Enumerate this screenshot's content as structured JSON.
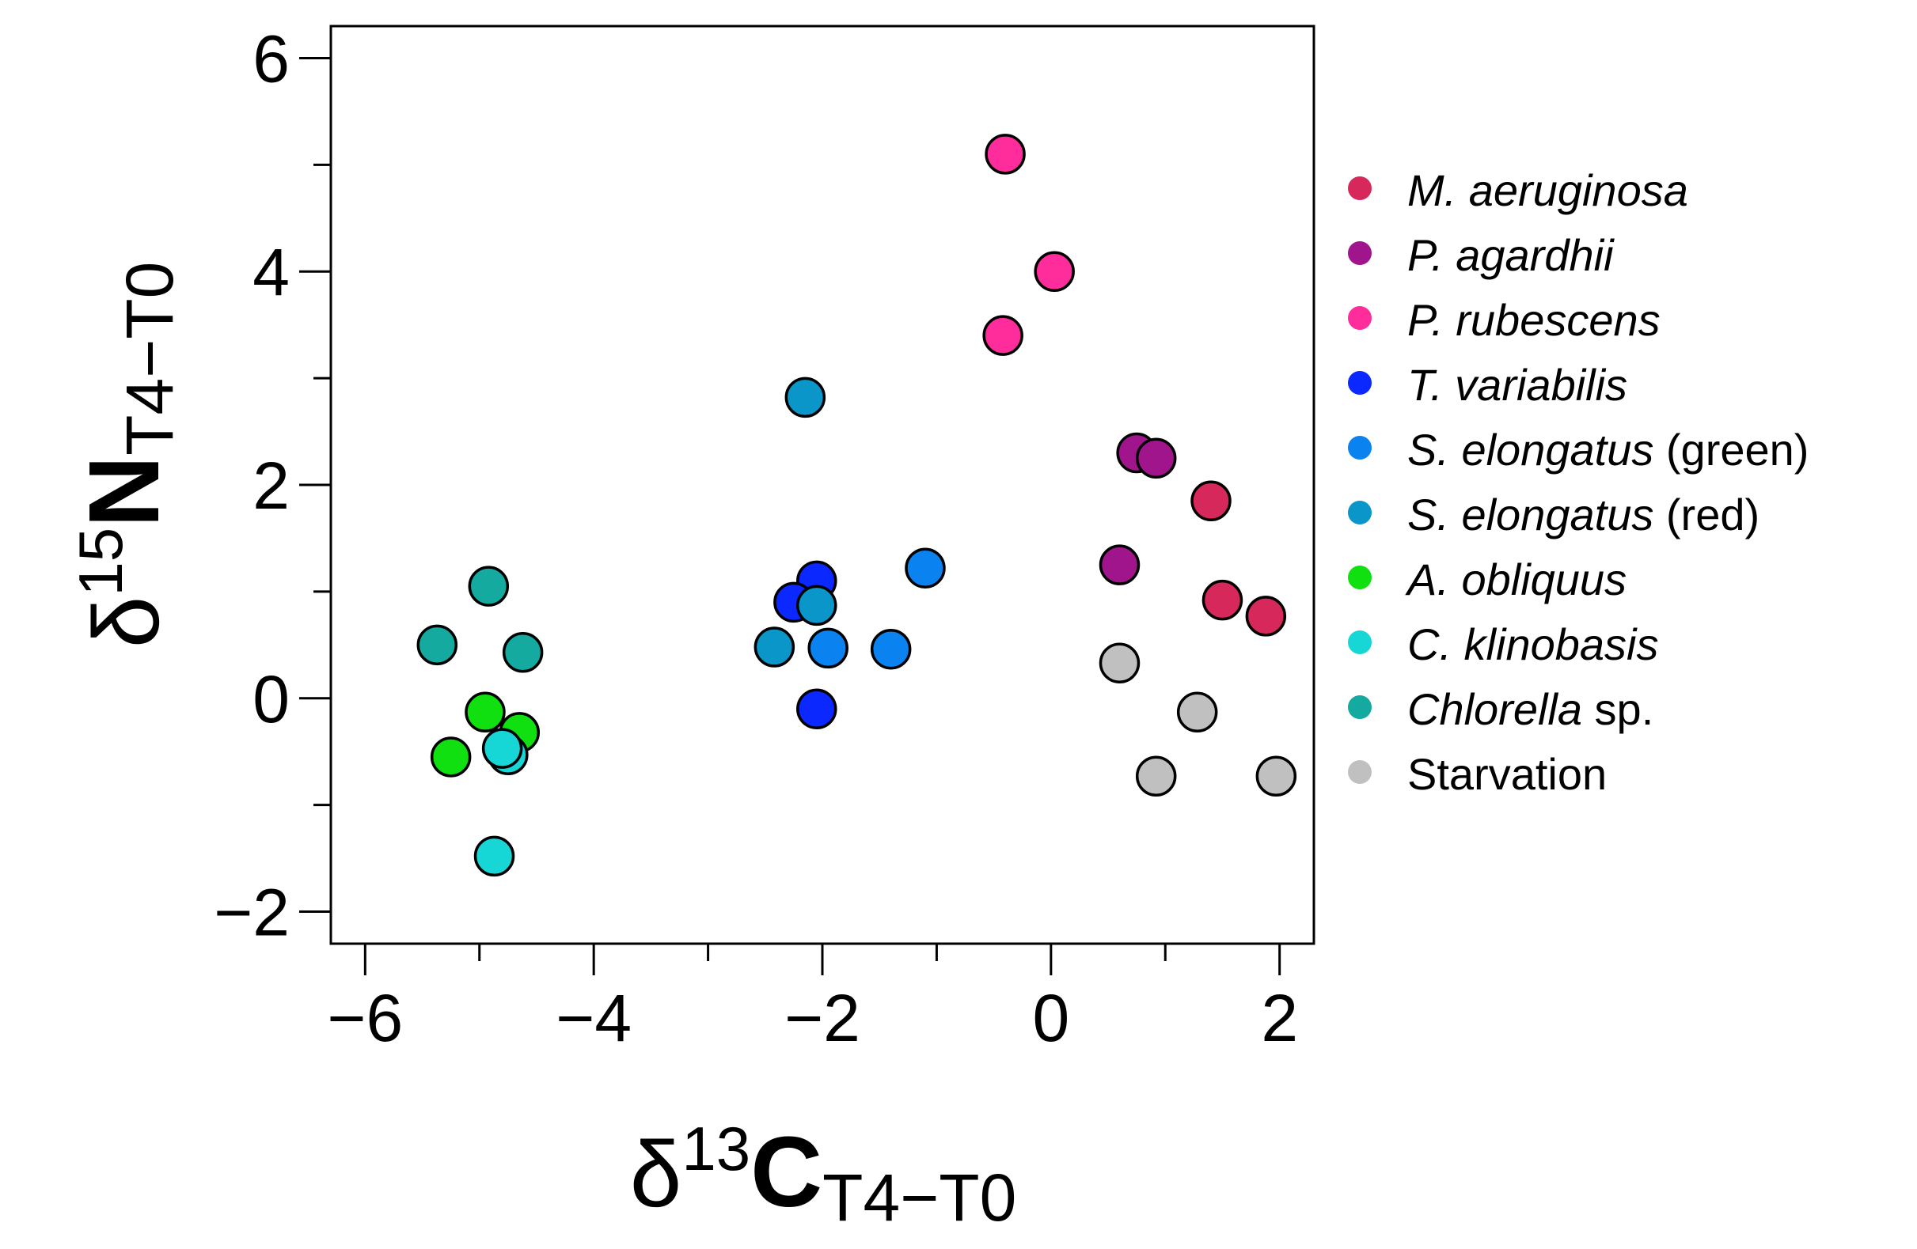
{
  "chart_data": {
    "type": "scatter",
    "title": "",
    "xlabel": {
      "symbol": "δ",
      "sup": "13",
      "main": "C",
      "sub": "T4−T0"
    },
    "ylabel": {
      "symbol": "δ",
      "sup": "15",
      "main": "N",
      "sub": "T4−T0"
    },
    "xlim": [
      -6.3,
      2.3
    ],
    "ylim": [
      -2.3,
      6.3
    ],
    "x_ticks": [
      -6,
      -4,
      -2,
      0,
      2
    ],
    "x_tick_labels": [
      "−6",
      "−4",
      "−2",
      "0",
      "2"
    ],
    "x_minor_ticks": [
      -5,
      -3,
      -1,
      1
    ],
    "y_ticks": [
      -2,
      0,
      2,
      4,
      6
    ],
    "y_tick_labels": [
      "−2",
      "0",
      "2",
      "4",
      "6"
    ],
    "y_minor_ticks": [
      -1,
      1,
      3,
      5
    ],
    "grid": false,
    "legend_position": "right",
    "series": [
      {
        "name": "M. aeruginosa",
        "italic": "M. aeruginosa",
        "suffix": "",
        "color": "#d6285a",
        "points": [
          [
            1.4,
            1.85
          ],
          [
            1.5,
            0.92
          ],
          [
            1.88,
            0.77
          ]
        ]
      },
      {
        "name": "P. agardhii",
        "italic": "P. agardhii",
        "suffix": "",
        "color": "#a0148c",
        "points": [
          [
            0.75,
            2.3
          ],
          [
            0.92,
            2.25
          ],
          [
            0.6,
            1.25
          ]
        ]
      },
      {
        "name": "P. rubescens",
        "italic": "P. rubescens",
        "suffix": "",
        "color": "#ff2d9b",
        "points": [
          [
            -0.4,
            5.1
          ],
          [
            0.03,
            4.0
          ],
          [
            -0.42,
            3.4
          ]
        ]
      },
      {
        "name": "T. variabilis",
        "italic": "T. variabilis",
        "suffix": "",
        "color": "#0a28ff",
        "points": [
          [
            -2.05,
            1.1
          ],
          [
            -2.25,
            0.9
          ],
          [
            -2.05,
            -0.1
          ]
        ]
      },
      {
        "name": "S. elongatus (green)",
        "italic": "S. elongatus",
        "suffix": " (green)",
        "color": "#0a82f0",
        "points": [
          [
            -1.1,
            1.22
          ],
          [
            -1.95,
            0.47
          ],
          [
            -1.4,
            0.46
          ]
        ]
      },
      {
        "name": "S. elongatus (red)",
        "italic": "S. elongatus",
        "suffix": " (red)",
        "color": "#0a96c8",
        "points": [
          [
            -2.15,
            2.82
          ],
          [
            -2.05,
            0.87
          ],
          [
            -2.42,
            0.48
          ]
        ]
      },
      {
        "name": "A. obliquus",
        "italic": "A. obliquus",
        "suffix": "",
        "color": "#10e010",
        "points": [
          [
            -4.95,
            -0.13
          ],
          [
            -4.65,
            -0.32
          ],
          [
            -5.25,
            -0.55
          ]
        ]
      },
      {
        "name": "C. klinobasis",
        "italic": "C. klinobasis",
        "suffix": "",
        "color": "#16d6d6",
        "points": [
          [
            -4.75,
            -0.53
          ],
          [
            -4.8,
            -0.47
          ],
          [
            -4.87,
            -1.48
          ]
        ]
      },
      {
        "name": "Chlorella sp.",
        "italic": "Chlorella",
        "suffix": " sp.",
        "color": "#14aaa0",
        "points": [
          [
            -4.92,
            1.05
          ],
          [
            -5.37,
            0.5
          ],
          [
            -4.62,
            0.43
          ]
        ]
      },
      {
        "name": "Starvation",
        "italic": "",
        "suffix": "Starvation",
        "color": "#c0c0c0",
        "points": [
          [
            0.6,
            0.33
          ],
          [
            1.28,
            -0.13
          ],
          [
            0.92,
            -0.73
          ],
          [
            1.97,
            -0.73
          ]
        ]
      }
    ]
  }
}
